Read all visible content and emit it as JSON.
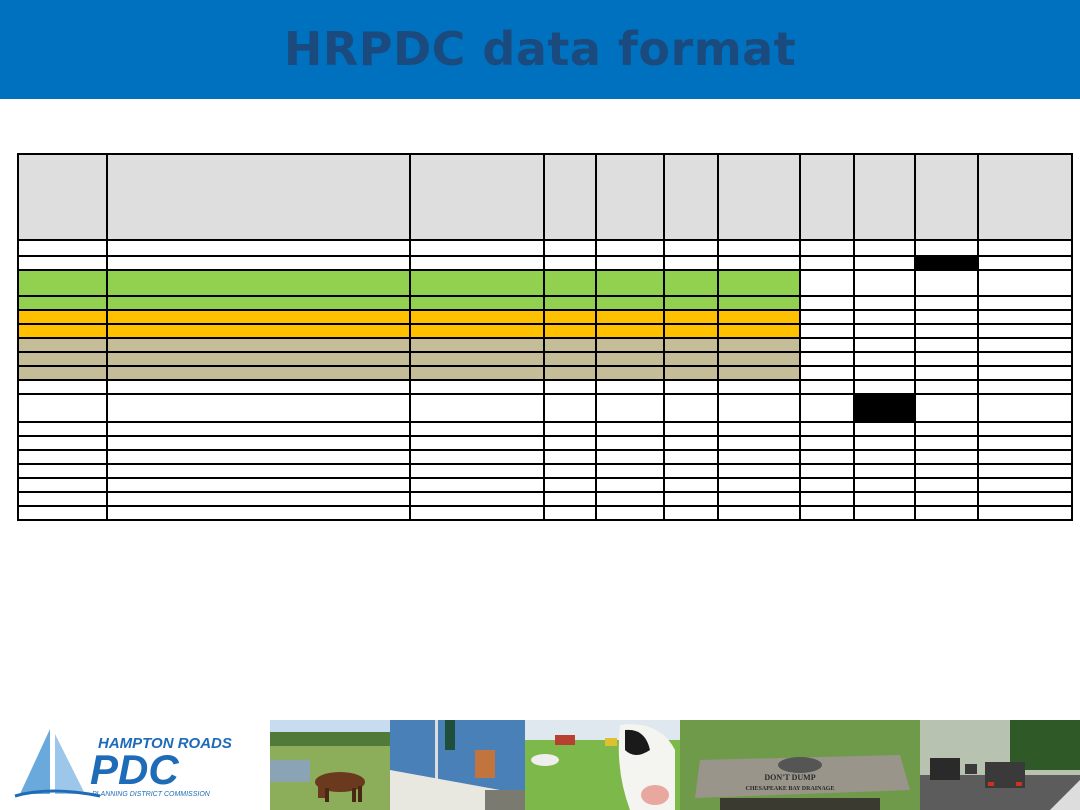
{
  "slide": {
    "title": "HRPDC data format"
  },
  "logo": {
    "line1": "HAMPTON ROADS",
    "line2": "PDC",
    "line3": "PLANNING DISTRICT COMMISSION"
  },
  "colors": {
    "header_bg": "#0071bf",
    "title_text": "#1a4a7e",
    "green": "#92d050",
    "orange": "#ffc000",
    "tan": "#c4bd97",
    "header_row": "#dedede"
  },
  "photos": [
    {
      "name": "horse-photo"
    },
    {
      "name": "sailboat-photo"
    },
    {
      "name": "cow-photo"
    },
    {
      "name": "storm-drain-photo",
      "text": "DON'T DUMP",
      "subtext": "CHESAPEAKE BAY DRAINAGE"
    },
    {
      "name": "traffic-photo"
    }
  ]
}
